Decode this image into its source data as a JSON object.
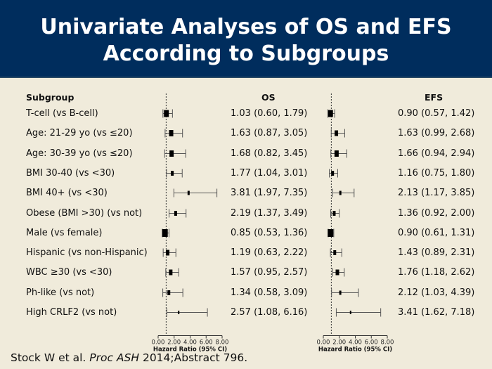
{
  "title": {
    "line1": "Univariate Analyses of OS and EFS",
    "line2": "According to Subgroups"
  },
  "columns": {
    "subgroup": "Subgroup",
    "os": "OS",
    "efs": "EFS"
  },
  "axis": {
    "ticks": [
      "0.00",
      "2.00",
      "4.00",
      "6.00",
      "8.00"
    ],
    "title": "Hazard Ratio (95% CI)"
  },
  "rows": [
    {
      "label": "T-cell (vs B-cell)",
      "os_text": "1.03 (0.60, 1.79)",
      "efs_text": "0.90 (0.57, 1.42)"
    },
    {
      "label": "Age: 21-29 yo (vs ≤20)",
      "os_text": "1.63 (0.87, 3.05)",
      "efs_text": "1.63 (0.99, 2.68)"
    },
    {
      "label": "Age: 30-39 yo (vs ≤20)",
      "os_text": "1.68 (0.82, 3.45)",
      "efs_text": "1.66 (0.94, 2.94)"
    },
    {
      "label": "BMI 30-40 (vs <30)",
      "os_text": "1.77 (1.04, 3.01)",
      "efs_text": "1.16 (0.75, 1.80)"
    },
    {
      "label": "BMI 40+ (vs <30)",
      "os_text": "3.81 (1.97, 7.35)",
      "efs_text": "2.13 (1.17, 3.85)"
    },
    {
      "label": "Obese (BMI >30) (vs not)",
      "os_text": "2.19 (1.37, 3.49)",
      "efs_text": "1.36 (0.92, 2.00)"
    },
    {
      "label": "Male (vs female)",
      "os_text": "0.85 (0.53, 1.36)",
      "efs_text": "0.90 (0.61, 1.31)"
    },
    {
      "label": "Hispanic (vs non-Hispanic)",
      "os_text": "1.19 (0.63, 2.22)",
      "efs_text": "1.43 (0.89, 2.31)"
    },
    {
      "label": "WBC ≥30 (vs <30)",
      "os_text": "1.57 (0.95, 2.57)",
      "efs_text": "1.76 (1.18, 2.62)"
    },
    {
      "label": "Ph-like (vs not)",
      "os_text": "1.34 (0.58, 3.09)",
      "efs_text": "2.12 (1.03, 4.39)"
    },
    {
      "label": "High CRLF2 (vs not)",
      "os_text": "2.57 (1.08, 6.16)",
      "efs_text": "3.41 (1.62, 7.18)"
    }
  ],
  "citation": {
    "pre": "Stock W et al. ",
    "journal": "Proc ASH",
    "post": " 2014;Abstract 796."
  },
  "chart_data": [
    {
      "type": "forest",
      "title": "OS",
      "xlabel": "Hazard Ratio (95% CI)",
      "xlim": [
        0,
        8
      ],
      "xticks": [
        0,
        2,
        4,
        6,
        8
      ],
      "reference_line": 1,
      "categories": [
        "T-cell (vs B-cell)",
        "Age: 21-29 yo (vs ≤20)",
        "Age: 30-39 yo (vs ≤20)",
        "BMI 30-40 (vs <30)",
        "BMI 40+ (vs <30)",
        "Obese (BMI >30) (vs not)",
        "Male (vs female)",
        "Hispanic (vs non-Hispanic)",
        "WBC ≥30 (vs <30)",
        "Ph-like (vs not)",
        "High CRLF2 (vs not)"
      ],
      "hr": [
        1.03,
        1.63,
        1.68,
        1.77,
        3.81,
        2.19,
        0.85,
        1.19,
        1.57,
        1.34,
        2.57
      ],
      "lower": [
        0.6,
        0.87,
        0.82,
        1.04,
        1.97,
        1.37,
        0.53,
        0.63,
        0.95,
        0.58,
        1.08
      ],
      "upper": [
        1.79,
        3.05,
        3.45,
        3.01,
        7.35,
        3.49,
        1.36,
        2.22,
        2.57,
        3.09,
        6.16
      ],
      "marker_size": [
        7,
        6,
        6,
        4,
        3,
        4,
        8,
        5,
        5,
        4,
        2
      ]
    },
    {
      "type": "forest",
      "title": "EFS",
      "xlabel": "Hazard Ratio (95% CI)",
      "xlim": [
        0,
        8
      ],
      "xticks": [
        0,
        2,
        4,
        6,
        8
      ],
      "reference_line": 1,
      "categories": [
        "T-cell (vs B-cell)",
        "Age: 21-29 yo (vs ≤20)",
        "Age: 30-39 yo (vs ≤20)",
        "BMI 30-40 (vs <30)",
        "BMI 40+ (vs <30)",
        "Obese (BMI >30) (vs not)",
        "Male (vs female)",
        "Hispanic (vs non-Hispanic)",
        "WBC ≥30 (vs <30)",
        "Ph-like (vs not)",
        "High CRLF2 (vs not)"
      ],
      "hr": [
        0.9,
        1.63,
        1.66,
        1.16,
        2.13,
        1.36,
        0.9,
        1.43,
        1.76,
        2.12,
        3.41
      ],
      "lower": [
        0.57,
        0.99,
        0.94,
        0.75,
        1.17,
        0.92,
        0.61,
        0.89,
        1.18,
        1.03,
        1.62
      ],
      "upper": [
        1.42,
        2.68,
        2.94,
        1.8,
        3.85,
        2.0,
        1.31,
        2.31,
        2.62,
        4.39,
        7.18
      ],
      "marker_size": [
        7,
        5,
        6,
        4,
        3,
        4,
        8,
        4,
        5,
        3,
        2
      ]
    }
  ]
}
